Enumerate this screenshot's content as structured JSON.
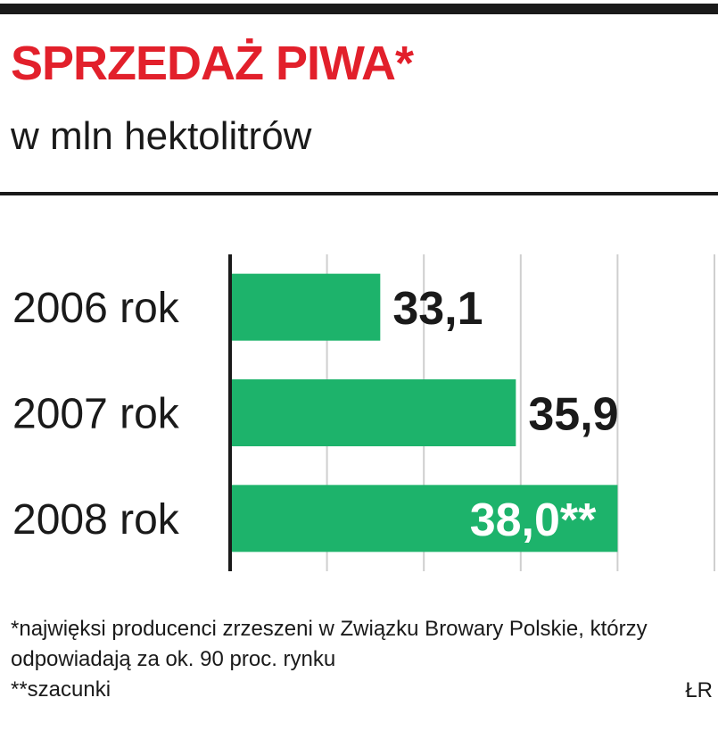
{
  "chart_data": {
    "type": "bar",
    "orientation": "horizontal",
    "title": "SPRZEDAŻ PIWA*",
    "subtitle": "w mln hektolitrów",
    "categories": [
      "2006 rok",
      "2007 rok",
      "2008 rok"
    ],
    "values": [
      33.1,
      35.9,
      38.0
    ],
    "value_labels": [
      "33,1",
      "35,9",
      "38,0**"
    ],
    "color": "#1db36b",
    "xlim": [
      30,
      40
    ],
    "xticks": [
      32,
      34,
      36,
      38,
      40
    ],
    "grid": true,
    "notes": [
      "*najwięksi producenci zrzeszeni w Związku Browary Polskie, którzy odpowiadają za ok. 90 proc. rynku",
      "**szacunki"
    ],
    "source": "ŁR"
  }
}
